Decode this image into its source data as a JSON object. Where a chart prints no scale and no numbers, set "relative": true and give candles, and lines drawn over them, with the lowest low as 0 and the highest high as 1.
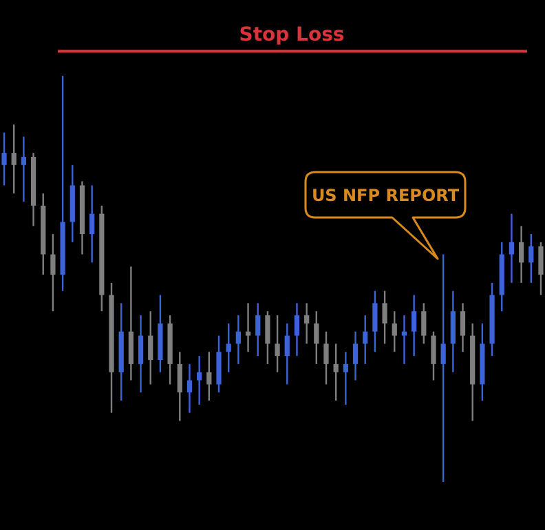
{
  "chart_data": {
    "type": "candlestick",
    "relative": true,
    "categories": [
      null,
      null,
      null,
      null,
      null,
      null,
      null,
      null,
      null,
      null,
      null,
      null,
      null,
      null,
      null,
      null,
      null,
      null,
      null,
      null,
      null,
      null,
      null,
      null,
      null,
      null,
      null,
      null,
      null,
      null,
      null,
      null,
      null,
      null,
      null,
      null,
      null,
      null,
      null,
      null,
      null,
      null,
      null,
      null,
      null,
      null,
      null,
      null,
      null,
      null,
      null,
      null,
      null,
      null,
      null,
      null
    ],
    "ohlc": [
      [
        0.78,
        0.86,
        0.73,
        0.81
      ],
      [
        0.81,
        0.88,
        0.71,
        0.78
      ],
      [
        0.78,
        0.85,
        0.69,
        0.8
      ],
      [
        0.8,
        0.81,
        0.63,
        0.68
      ],
      [
        0.68,
        0.71,
        0.51,
        0.56
      ],
      [
        0.56,
        0.61,
        0.42,
        0.51
      ],
      [
        0.51,
        1,
        0.47,
        0.64
      ],
      [
        0.64,
        0.78,
        0.59,
        0.73
      ],
      [
        0.73,
        0.74,
        0.56,
        0.61
      ],
      [
        0.61,
        0.73,
        0.54,
        0.66
      ],
      [
        0.66,
        0.68,
        0.42,
        0.46
      ],
      [
        0.46,
        0.49,
        0.17,
        0.27
      ],
      [
        0.27,
        0.44,
        0.2,
        0.37
      ],
      [
        0.37,
        0.53,
        0.25,
        0.29
      ],
      [
        0.29,
        0.41,
        0.22,
        0.36
      ],
      [
        0.36,
        0.42,
        0.24,
        0.3
      ],
      [
        0.3,
        0.46,
        0.27,
        0.39
      ],
      [
        0.39,
        0.41,
        0.24,
        0.29
      ],
      [
        0.29,
        0.32,
        0.15,
        0.22
      ],
      [
        0.22,
        0.29,
        0.17,
        0.25
      ],
      [
        0.25,
        0.31,
        0.19,
        0.27
      ],
      [
        0.27,
        0.32,
        0.2,
        0.24
      ],
      [
        0.24,
        0.36,
        0.22,
        0.32
      ],
      [
        0.32,
        0.39,
        0.27,
        0.34
      ],
      [
        0.34,
        0.41,
        0.29,
        0.37
      ],
      [
        0.37,
        0.44,
        0.32,
        0.36
      ],
      [
        0.36,
        0.44,
        0.31,
        0.41
      ],
      [
        0.41,
        0.42,
        0.29,
        0.34
      ],
      [
        0.34,
        0.41,
        0.27,
        0.31
      ],
      [
        0.31,
        0.39,
        0.24,
        0.36
      ],
      [
        0.36,
        0.44,
        0.31,
        0.41
      ],
      [
        0.41,
        0.44,
        0.34,
        0.39
      ],
      [
        0.39,
        0.42,
        0.29,
        0.34
      ],
      [
        0.34,
        0.37,
        0.24,
        0.29
      ],
      [
        0.29,
        0.34,
        0.2,
        0.27
      ],
      [
        0.27,
        0.32,
        0.19,
        0.29
      ],
      [
        0.29,
        0.37,
        0.25,
        0.34
      ],
      [
        0.34,
        0.41,
        0.29,
        0.37
      ],
      [
        0.37,
        0.47,
        0.32,
        0.44
      ],
      [
        0.44,
        0.47,
        0.34,
        0.39
      ],
      [
        0.39,
        0.42,
        0.32,
        0.36
      ],
      [
        0.36,
        0.41,
        0.29,
        0.37
      ],
      [
        0.37,
        0.46,
        0.31,
        0.42
      ],
      [
        0.42,
        0.44,
        0.34,
        0.36
      ],
      [
        0.36,
        0.37,
        0.25,
        0.29
      ],
      [
        0.29,
        0.56,
        0,
        0.34
      ],
      [
        0.34,
        0.47,
        0.27,
        0.42
      ],
      [
        0.42,
        0.44,
        0.32,
        0.36
      ],
      [
        0.36,
        0.39,
        0.15,
        0.24
      ],
      [
        0.24,
        0.39,
        0.2,
        0.34
      ],
      [
        0.34,
        0.49,
        0.31,
        0.46
      ],
      [
        0.46,
        0.59,
        0.42,
        0.56
      ],
      [
        0.56,
        0.66,
        0.49,
        0.59
      ],
      [
        0.59,
        0.63,
        0.49,
        0.54
      ],
      [
        0.54,
        0.61,
        0.49,
        0.58
      ],
      [
        0.58,
        0.59,
        0.46,
        0.51
      ]
    ],
    "colors": [
      "#3d63d9",
      "#7f7f7f",
      "#3d63d9",
      "#7f7f7f",
      "#7f7f7f",
      "#7f7f7f",
      "#3d63d9",
      "#3d63d9",
      "#7f7f7f",
      "#3d63d9",
      "#7f7f7f",
      "#7f7f7f",
      "#3d63d9",
      "#7f7f7f",
      "#3d63d9",
      "#7f7f7f",
      "#3d63d9",
      "#7f7f7f",
      "#7f7f7f",
      "#3d63d9",
      "#3d63d9",
      "#7f7f7f",
      "#3d63d9",
      "#3d63d9",
      "#3d63d9",
      "#7f7f7f",
      "#3d63d9",
      "#7f7f7f",
      "#7f7f7f",
      "#3d63d9",
      "#3d63d9",
      "#7f7f7f",
      "#7f7f7f",
      "#7f7f7f",
      "#7f7f7f",
      "#3d63d9",
      "#3d63d9",
      "#3d63d9",
      "#3d63d9",
      "#7f7f7f",
      "#7f7f7f",
      "#3d63d9",
      "#3d63d9",
      "#7f7f7f",
      "#7f7f7f",
      "#3d63d9",
      "#3d63d9",
      "#7f7f7f",
      "#7f7f7f",
      "#3d63d9",
      "#3d63d9",
      "#3d63d9",
      "#3d63d9",
      "#7f7f7f",
      "#3d63d9",
      "#7f7f7f"
    ],
    "ref_lines": [
      {
        "axis": "y",
        "value": 1.06,
        "label": "Stop Loss",
        "color": "#d9343c"
      }
    ],
    "annotations": [
      "US NFP REPORT"
    ]
  }
}
